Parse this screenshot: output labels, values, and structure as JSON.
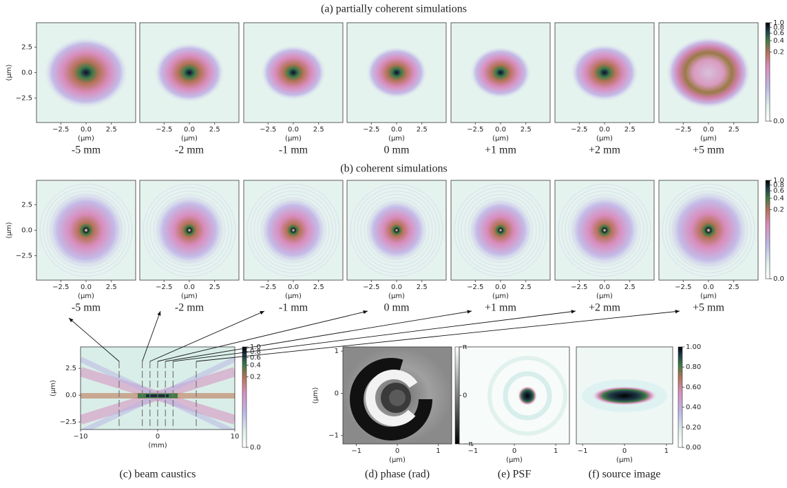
{
  "rows": [
    {
      "title": "(a) partially coherent simulations",
      "panel_labels": [
        "-5 mm",
        "-2 mm",
        "-1 mm",
        "0 mm",
        "+1 mm",
        "+2 mm",
        "+5 mm"
      ]
    },
    {
      "title": "(b) coherent simulations",
      "panel_labels": [
        "-5 mm",
        "-2 mm",
        "-1 mm",
        "0 mm",
        "+1 mm",
        "+2 mm",
        "+5 mm"
      ]
    }
  ],
  "sim_axes": {
    "xlabel": "(μm)",
    "ylabel": "(μm)",
    "xlim": [
      -4.9,
      4.9
    ],
    "ylim": [
      -4.9,
      4.9
    ],
    "xticks": [
      {
        "value": -2.5,
        "label": "−2.5"
      },
      {
        "value": 0,
        "label": "0.0"
      },
      2.5
    ],
    "yticks": [
      2.5,
      {
        "value": 0,
        "label": "0.0"
      },
      {
        "value": -2.5,
        "label": "−2.5"
      }
    ]
  },
  "sim_colorbars": [
    {
      "lim": [
        0,
        1
      ],
      "exponent": 0.22,
      "ticks": [
        {
          "value": 1,
          "label": "1.0"
        },
        0.8,
        0.6,
        0.4,
        0.2,
        {
          "value": 0,
          "label": "0.0"
        }
      ]
    },
    {
      "lim": [
        0,
        1
      ],
      "exponent": 0.22,
      "ticks": [
        {
          "value": 1,
          "label": "1.0"
        },
        0.8,
        0.6,
        0.4,
        0.2,
        {
          "value": 0,
          "label": "0.0"
        }
      ]
    }
  ],
  "caustics": {
    "caption": "(c) beam caustics",
    "xlabel": "(mm)",
    "ylabel": "(μm)",
    "xlim": [
      -10,
      10
    ],
    "ylim": [
      -3.2,
      4.5
    ],
    "xticks": [
      {
        "value": -10,
        "label": "−10"
      },
      0,
      10
    ],
    "yticks": [
      2.5,
      {
        "value": 0,
        "label": "0.0"
      },
      {
        "value": -2.5,
        "label": "−2.5"
      }
    ],
    "slices": [
      -5,
      -2,
      -1,
      0,
      1,
      2,
      5
    ],
    "colorbar": {
      "lim": [
        0,
        1
      ],
      "exponent": 0.22,
      "ticks": [
        {
          "value": 1,
          "label": "1.0"
        },
        0.8,
        0.6,
        0.4,
        0.2,
        {
          "value": 0,
          "label": "0.0"
        }
      ]
    }
  },
  "phase": {
    "caption": "(d) phase (rad)",
    "xlabel": "(μm)",
    "ylabel": "(μm)",
    "xlim": [
      -1.33,
      1.33
    ],
    "ylim": [
      -1.2,
      1.1
    ],
    "xticks": [
      {
        "value": -1,
        "label": "−1"
      },
      0,
      1
    ],
    "yticks": [
      1,
      0,
      {
        "value": -1,
        "label": "−1"
      }
    ],
    "colorbar": {
      "lim": [
        -3.1416,
        3.1416
      ],
      "exponent": 1,
      "ticks": [
        {
          "value": 3.1416,
          "label": "π"
        },
        0,
        {
          "value": -3.1416,
          "label": "−π"
        }
      ]
    }
  },
  "psf": {
    "caption": "(e) PSF",
    "xlabel": "(μm)",
    "xlim": [
      -1.33,
      1.33
    ],
    "xticks": [
      {
        "value": -1,
        "label": "−1"
      },
      0,
      1
    ]
  },
  "source": {
    "caption": "(f) source image",
    "xlabel": "(μm)",
    "xlim": [
      -1.15,
      1.15
    ],
    "xticks": [
      {
        "value": -1,
        "label": "−1"
      },
      0,
      1
    ],
    "colorbar": {
      "lim": [
        0,
        1
      ],
      "exponent": 1,
      "ticks": [
        {
          "value": 1,
          "label": "1.00"
        },
        {
          "value": 0.8,
          "label": "0.80"
        },
        {
          "value": 0.6,
          "label": "0.60"
        },
        {
          "value": 0.4,
          "label": "0.40"
        },
        {
          "value": 0.2,
          "label": "0.20"
        },
        {
          "value": 0,
          "label": "0.00"
        }
      ]
    }
  }
}
